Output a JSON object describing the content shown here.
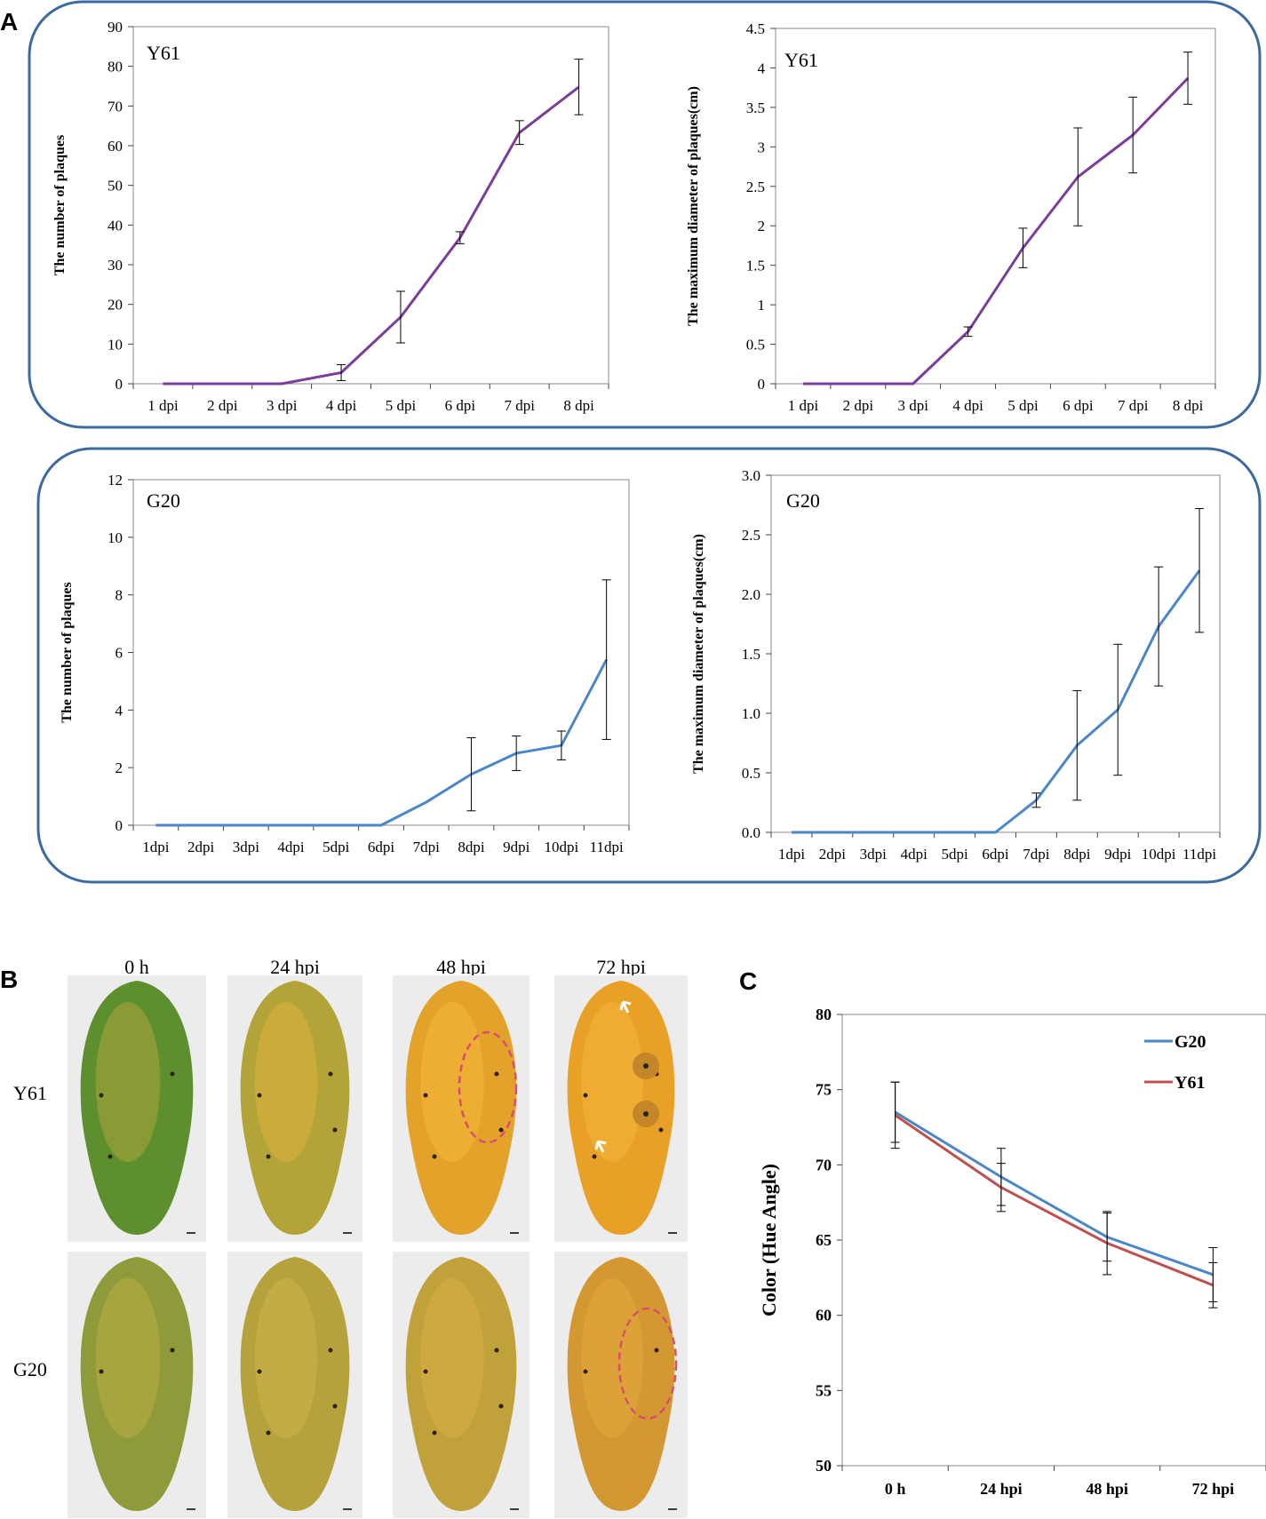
{
  "panel_labels": {
    "A": "A",
    "B": "B",
    "C": "C"
  },
  "colors": {
    "purple": "#7a3d9a",
    "blue": "#4a86c8",
    "red": "#c0504d",
    "frame": "#3c6a9e",
    "error": "#000000"
  },
  "chart_data": [
    {
      "id": "y61-number",
      "type": "line",
      "title": "Y61",
      "xlabel": "",
      "ylabel": "The number of plaques",
      "categories": [
        "1 dpi",
        "2 dpi",
        "3 dpi",
        "4 dpi",
        "5 dpi",
        "6 dpi",
        "7 dpi",
        "8 dpi"
      ],
      "ylim": [
        0,
        90
      ],
      "yticks": [
        0,
        10,
        20,
        30,
        40,
        50,
        60,
        70,
        80,
        90
      ],
      "ytick_labels": [
        "0",
        "10",
        "20",
        "30",
        "40",
        "50",
        "60",
        "70",
        "80",
        "90"
      ],
      "series": [
        {
          "name": "Y61",
          "color": "#7a3d9a",
          "values": [
            0,
            0,
            0,
            2.8,
            16.8,
            36.8,
            63.3,
            74.8
          ],
          "errors": [
            0,
            0,
            0,
            2,
            6.5,
            1.5,
            3,
            7
          ]
        }
      ]
    },
    {
      "id": "y61-diameter",
      "type": "line",
      "title": "Y61",
      "xlabel": "",
      "ylabel": "The maximum diameter of plaques(cm)",
      "categories": [
        "1 dpi",
        "2 dpi",
        "3 dpi",
        "4 dpi",
        "5 dpi",
        "6 dpi",
        "7 dpi",
        "8 dpi"
      ],
      "ylim": [
        0,
        4.5
      ],
      "yticks": [
        0,
        0.5,
        1,
        1.5,
        2,
        2.5,
        3,
        3.5,
        4,
        4.5
      ],
      "ytick_labels": [
        "0",
        "0.5",
        "1",
        "1.5",
        "2",
        "2.5",
        "3",
        "3.5",
        "4",
        "4.5"
      ],
      "series": [
        {
          "name": "Y61",
          "color": "#7a3d9a",
          "values": [
            0,
            0,
            0,
            0.66,
            1.72,
            2.62,
            3.15,
            3.87
          ],
          "errors": [
            0,
            0,
            0,
            0.06,
            0.25,
            0.62,
            0.48,
            0.33
          ]
        }
      ]
    },
    {
      "id": "g20-number",
      "type": "line",
      "title": "G20",
      "xlabel": "",
      "ylabel": "The number of plaques",
      "categories": [
        "1dpi",
        "2dpi",
        "3dpi",
        "4dpi",
        "5dpi",
        "6dpi",
        "7dpi",
        "8dpi",
        "9dpi",
        "10dpi",
        "11dpi"
      ],
      "ylim": [
        0,
        12
      ],
      "yticks": [
        0,
        2,
        4,
        6,
        8,
        10,
        12
      ],
      "ytick_labels": [
        "0",
        "2",
        "4",
        "6",
        "8",
        "10",
        "12"
      ],
      "series": [
        {
          "name": "G20",
          "color": "#4a86c8",
          "values": [
            0,
            0,
            0,
            0,
            0,
            0,
            0.8,
            1.77,
            2.5,
            2.77,
            5.75
          ],
          "errors": [
            0,
            0,
            0,
            0,
            0,
            0,
            0,
            1.27,
            0.6,
            0.5,
            2.77
          ]
        }
      ]
    },
    {
      "id": "g20-diameter",
      "type": "line",
      "title": "G20",
      "xlabel": "",
      "ylabel": "The maximum diameter of plaques(cm)",
      "categories": [
        "1dpi",
        "2dpi",
        "3dpi",
        "4dpi",
        "5dpi",
        "6dpi",
        "7dpi",
        "8dpi",
        "9dpi",
        "10dpi",
        "11dpi"
      ],
      "ylim": [
        0,
        3.0
      ],
      "yticks": [
        0,
        0.5,
        1,
        1.5,
        2,
        2.5,
        3
      ],
      "ytick_labels": [
        "0.0",
        "0.5",
        "1.0",
        "1.5",
        "2.0",
        "2.5",
        "3.0"
      ],
      "series": [
        {
          "name": "G20",
          "color": "#4a86c8",
          "values": [
            0,
            0,
            0,
            0,
            0,
            0,
            0.27,
            0.73,
            1.03,
            1.73,
            2.2
          ],
          "errors": [
            0,
            0,
            0,
            0,
            0,
            0,
            0.06,
            0.46,
            0.55,
            0.5,
            0.52
          ]
        }
      ]
    },
    {
      "id": "hue-angle",
      "type": "line",
      "title": "",
      "xlabel": "",
      "ylabel": "Color (Hue Angle)",
      "categories": [
        "0 h",
        "24 hpi",
        "48 hpi",
        "72 hpi"
      ],
      "ylim": [
        50,
        80
      ],
      "yticks": [
        50,
        55,
        60,
        65,
        70,
        75,
        80
      ],
      "ytick_labels": [
        "50",
        "55",
        "60",
        "65",
        "70",
        "75",
        "80"
      ],
      "legend_position": "top-right",
      "series": [
        {
          "name": "G20",
          "color": "#4a86c8",
          "values": [
            73.5,
            69.2,
            65.2,
            62.7
          ],
          "errors": [
            2.0,
            1.9,
            1.6,
            1.8
          ]
        },
        {
          "name": "Y61",
          "color": "#c0504d",
          "values": [
            73.3,
            68.5,
            64.8,
            62.0
          ],
          "errors": [
            2.2,
            1.6,
            2.1,
            1.5
          ]
        }
      ]
    }
  ],
  "photos": {
    "columns": [
      "0 h",
      "24 hpi",
      "48 hpi",
      "72 hpi"
    ],
    "rows": [
      "Y61",
      "G20"
    ],
    "cells": [
      [
        {
          "body": "#5e8f2e",
          "tint": "#a8a43a",
          "spots": 3,
          "circle": false,
          "arrows": 0
        },
        {
          "body": "#b3a43a",
          "tint": "#d8b03e",
          "spots": 4,
          "circle": false,
          "arrows": 0
        },
        {
          "body": "#e3a22a",
          "tint": "#f1b63b",
          "spots": 4,
          "circle": true,
          "arrows": 0
        },
        {
          "body": "#e8a126",
          "tint": "#f1b53a",
          "spots": 4,
          "circle": false,
          "arrows": 2
        }
      ],
      [
        {
          "body": "#8f9a3a",
          "tint": "#b9ad45",
          "spots": 2,
          "circle": false,
          "arrows": 0
        },
        {
          "body": "#b6a23c",
          "tint": "#cdb24a",
          "spots": 4,
          "circle": false,
          "arrows": 0
        },
        {
          "body": "#c0a13a",
          "tint": "#d7ad46",
          "spots": 4,
          "circle": false,
          "arrows": 0
        },
        {
          "body": "#d39831",
          "tint": "#e2a93c",
          "spots": 2,
          "circle": true,
          "arrows": 0
        }
      ]
    ]
  }
}
